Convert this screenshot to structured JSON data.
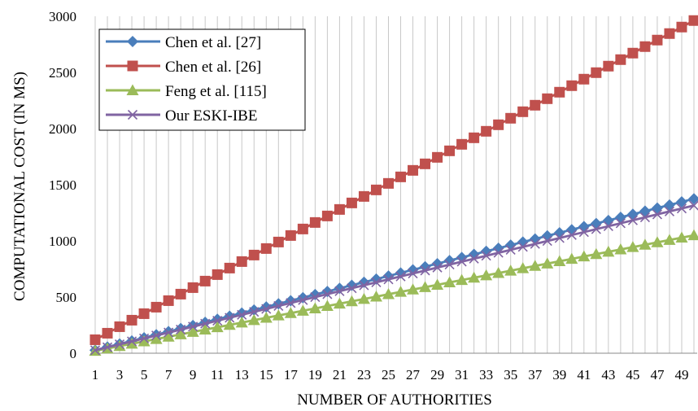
{
  "chart_data": {
    "type": "line",
    "xlabel": "NUMBER OF AUTHORITIES",
    "ylabel": "COMPUTATIONAL COST (IN MS)",
    "x": [
      1,
      2,
      3,
      4,
      5,
      6,
      7,
      8,
      9,
      10,
      11,
      12,
      13,
      14,
      15,
      16,
      17,
      18,
      19,
      20,
      21,
      22,
      23,
      24,
      25,
      26,
      27,
      28,
      29,
      30,
      31,
      32,
      33,
      34,
      35,
      36,
      37,
      38,
      39,
      40,
      41,
      42,
      43,
      44,
      45,
      46,
      47,
      48,
      49,
      50
    ],
    "x_tick_labels": [
      "1",
      "3",
      "5",
      "7",
      "9",
      "11",
      "13",
      "15",
      "17",
      "19",
      "21",
      "23",
      "25",
      "27",
      "29",
      "31",
      "33",
      "35",
      "37",
      "39",
      "41",
      "43",
      "45",
      "47",
      "49"
    ],
    "ylim": [
      0,
      3000
    ],
    "y_ticks": [
      "0",
      "500",
      "1000",
      "1500",
      "2000",
      "2500",
      "3000"
    ],
    "grid": "vertical",
    "legend_position": "top-left",
    "series": [
      {
        "name": "Chen et al. [27]",
        "color": "#4a7ebb",
        "marker": "diamond",
        "start": 27.5,
        "step": 27.5
      },
      {
        "name": "Chen et al. [26]",
        "color": "#c0504d",
        "marker": "square",
        "start": 120,
        "step": 58
      },
      {
        "name": "Feng et al. [115]",
        "color": "#9bbb59",
        "marker": "triangle",
        "start": 21,
        "step": 21
      },
      {
        "name": "Our ESKI-IBE",
        "color": "#8064a2",
        "marker": "x",
        "start": 26.3,
        "step": 26.3
      }
    ]
  }
}
